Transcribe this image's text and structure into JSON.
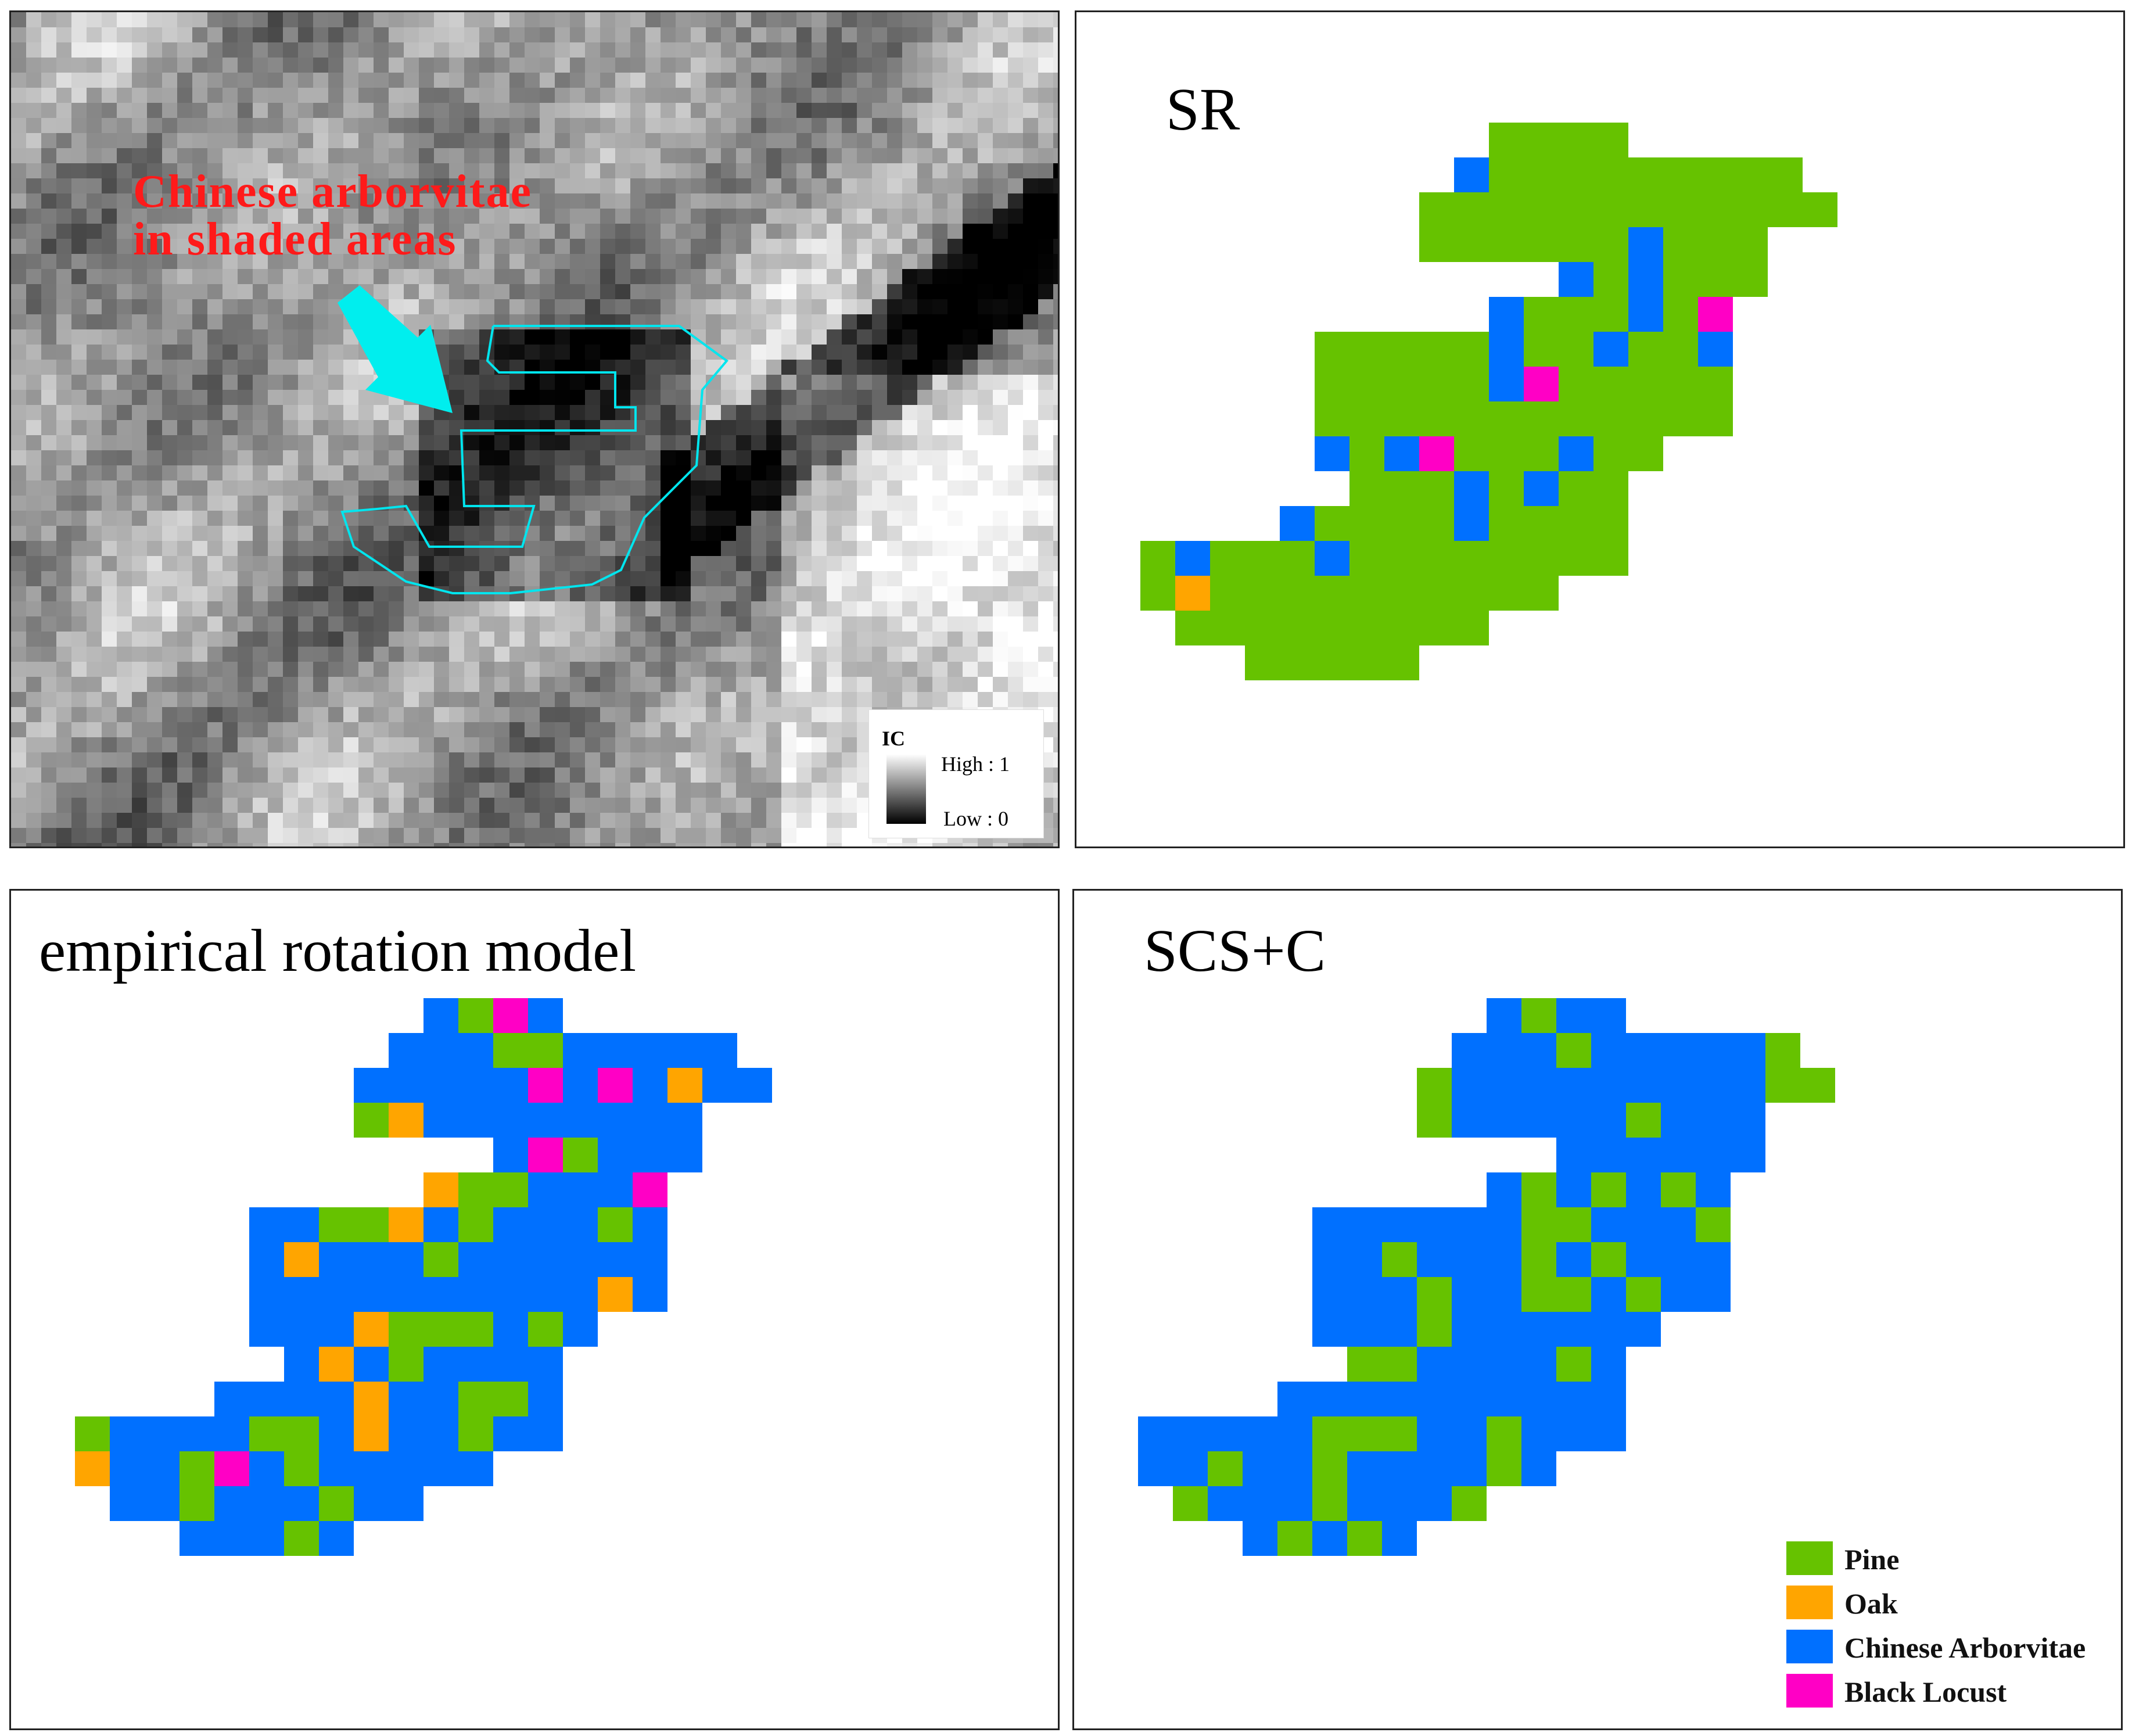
{
  "panels": {
    "ic": {
      "annotation": [
        "Chinese arborvitae",
        "in shaded areas"
      ],
      "legend": {
        "title": "IC",
        "high": "High : 1",
        "low": "Low : 0"
      }
    },
    "sr": {
      "title": "SR"
    },
    "erm": {
      "title": "empirical rotation model"
    },
    "scs": {
      "title": "SCS+C"
    }
  },
  "legend": [
    {
      "label": "Pine",
      "color": "#66c200"
    },
    {
      "label": "Oak",
      "color": "#ffa500"
    },
    {
      "label": "Chinese Arborvitae",
      "color": "#0070ff"
    },
    {
      "label": "Black Locust",
      "color": "#ff00c5"
    }
  ],
  "colors": {
    "annotation": "#ff1a1a",
    "outline": "#00e5ee",
    "arrow": "#00eeee",
    "nodata": "#888888"
  }
}
